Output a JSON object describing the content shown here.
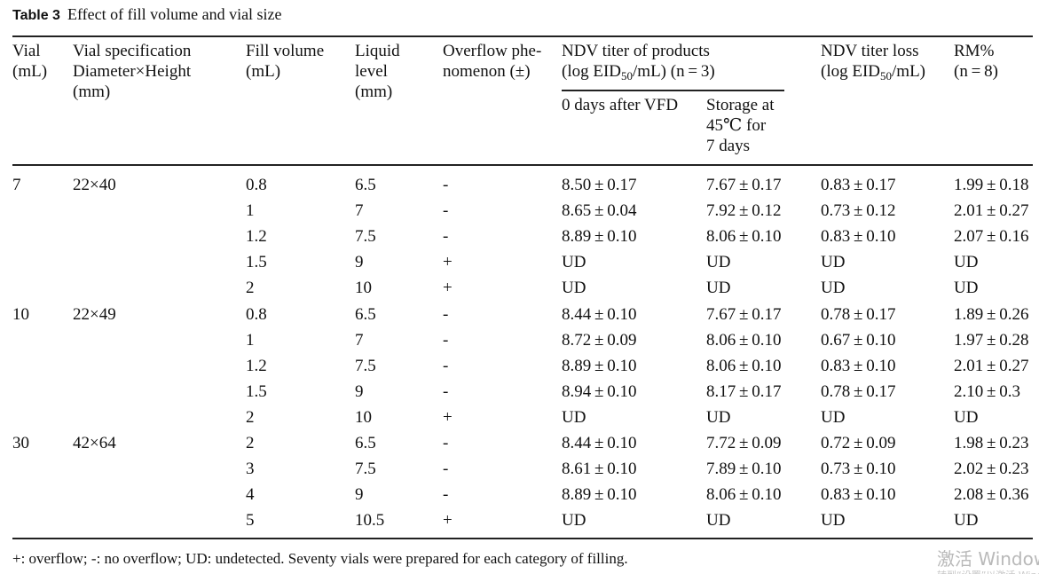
{
  "caption": {
    "label": "Table 3",
    "text": "Effect of fill volume and vial size"
  },
  "headers": {
    "vial": [
      "Vial",
      "(mL)"
    ],
    "spec": [
      "Vial specification",
      "Diameter×Height",
      "(mm)"
    ],
    "fill": [
      "Fill volume",
      "(mL)"
    ],
    "liquid": [
      "Liquid",
      "level",
      "(mm)"
    ],
    "overflow": [
      "Overflow phe-",
      "nomenon (±)"
    ],
    "ndv_titer": {
      "l1": "NDV titer of products",
      "l2a": "(log EID",
      "sub": "50",
      "l2b": "/mL) (n = 3)"
    },
    "day0": "0 days after VFD",
    "storage": [
      "Storage at",
      "45℃ for",
      "7 days"
    ],
    "loss": {
      "l1": "NDV titer loss",
      "l2a": "(log EID",
      "sub": "50",
      "l2b": "/mL)"
    },
    "rm": [
      "RM%",
      "(n = 8)"
    ]
  },
  "rows": [
    {
      "vial": "7",
      "spec": "22×40",
      "fill": "0.8",
      "level": "6.5",
      "overflow": "-",
      "day0": "8.50 ± 0.17",
      "storage": "7.67 ± 0.17",
      "loss": "0.83 ± 0.17",
      "rm": "1.99 ± 0.18"
    },
    {
      "vial": "",
      "spec": "",
      "fill": "1",
      "level": "7",
      "overflow": "-",
      "day0": "8.65 ± 0.04",
      "storage": "7.92 ± 0.12",
      "loss": "0.73 ± 0.12",
      "rm": "2.01 ± 0.27"
    },
    {
      "vial": "",
      "spec": "",
      "fill": "1.2",
      "level": "7.5",
      "overflow": "-",
      "day0": "8.89 ± 0.10",
      "storage": "8.06 ± 0.10",
      "loss": "0.83 ± 0.10",
      "rm": "2.07 ± 0.16"
    },
    {
      "vial": "",
      "spec": "",
      "fill": "1.5",
      "level": "9",
      "overflow": "+",
      "day0": "UD",
      "storage": "UD",
      "loss": "UD",
      "rm": "UD"
    },
    {
      "vial": "",
      "spec": "",
      "fill": "2",
      "level": "10",
      "overflow": "+",
      "day0": "UD",
      "storage": "UD",
      "loss": "UD",
      "rm": "UD"
    },
    {
      "vial": "10",
      "spec": "22×49",
      "fill": "0.8",
      "level": "6.5",
      "overflow": "-",
      "day0": "8.44 ± 0.10",
      "storage": "7.67 ± 0.17",
      "loss": "0.78 ± 0.17",
      "rm": "1.89 ± 0.26"
    },
    {
      "vial": "",
      "spec": "",
      "fill": "1",
      "level": "7",
      "overflow": "-",
      "day0": "8.72 ± 0.09",
      "storage": "8.06 ± 0.10",
      "loss": "0.67 ± 0.10",
      "rm": "1.97 ± 0.28"
    },
    {
      "vial": "",
      "spec": "",
      "fill": "1.2",
      "level": "7.5",
      "overflow": "-",
      "day0": "8.89 ± 0.10",
      "storage": "8.06 ± 0.10",
      "loss": "0.83 ± 0.10",
      "rm": "2.01 ± 0.27"
    },
    {
      "vial": "",
      "spec": "",
      "fill": "1.5",
      "level": "9",
      "overflow": "-",
      "day0": "8.94 ± 0.10",
      "storage": "8.17 ± 0.17",
      "loss": "0.78 ± 0.17",
      "rm": "2.10 ± 0.3"
    },
    {
      "vial": "",
      "spec": "",
      "fill": "2",
      "level": "10",
      "overflow": "+",
      "day0": "UD",
      "storage": "UD",
      "loss": "UD",
      "rm": "UD"
    },
    {
      "vial": "30",
      "spec": "42×64",
      "fill": "2",
      "level": "6.5",
      "overflow": "-",
      "day0": "8.44 ± 0.10",
      "storage": "7.72 ± 0.09",
      "loss": "0.72 ± 0.09",
      "rm": "1.98 ± 0.23"
    },
    {
      "vial": "",
      "spec": "",
      "fill": "3",
      "level": "7.5",
      "overflow": "-",
      "day0": "8.61 ± 0.10",
      "storage": "7.89 ± 0.10",
      "loss": "0.73 ± 0.10",
      "rm": "2.02 ± 0.23"
    },
    {
      "vial": "",
      "spec": "",
      "fill": "4",
      "level": "9",
      "overflow": "-",
      "day0": "8.89 ± 0.10",
      "storage": "8.06 ± 0.10",
      "loss": "0.83 ± 0.10",
      "rm": "2.08 ± 0.36"
    },
    {
      "vial": "",
      "spec": "",
      "fill": "5",
      "level": "10.5",
      "overflow": "+",
      "day0": "UD",
      "storage": "UD",
      "loss": "UD",
      "rm": "UD"
    }
  ],
  "footnote": "+: overflow; -: no overflow; UD: undetected. Seventy vials were prepared for each category of filling.",
  "watermark": {
    "line1": "激活 Windows",
    "line2": "转到“设置”以激活 Windows。"
  }
}
